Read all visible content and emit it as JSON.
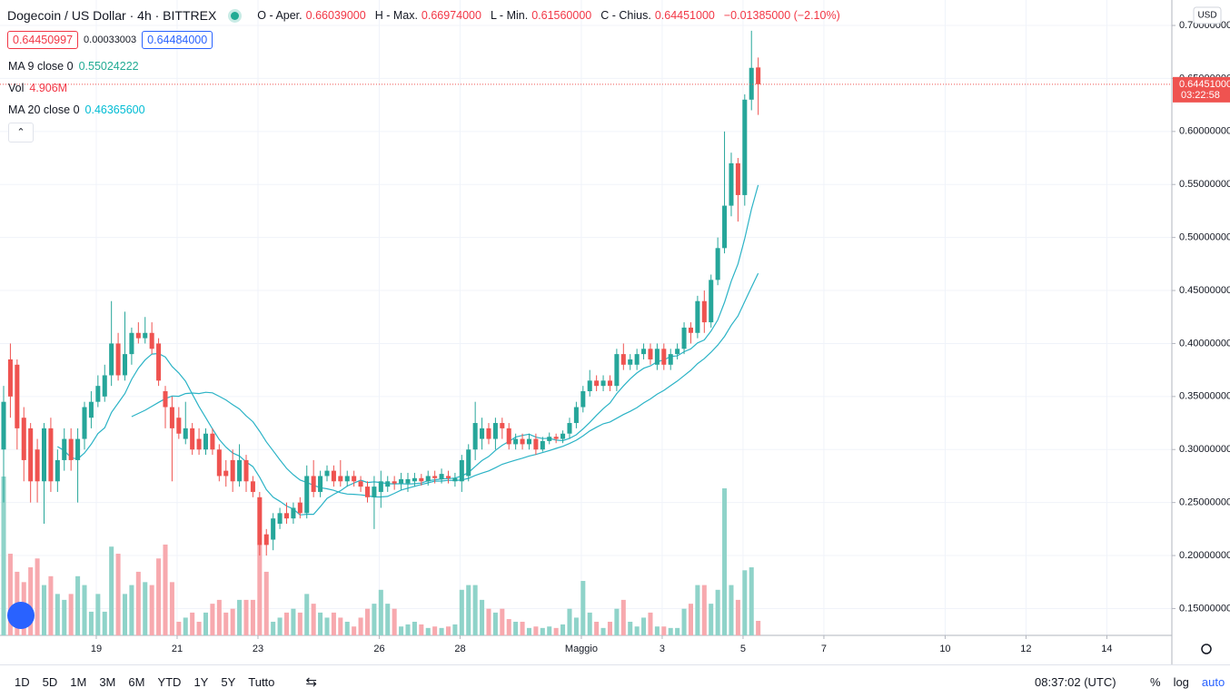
{
  "header": {
    "title": "Dogecoin / US Dollar · 4h · BITTREX",
    "ohlc": [
      {
        "label": "O - Aper.",
        "value": "0.66039000"
      },
      {
        "label": "H - Max.",
        "value": "0.66974000"
      },
      {
        "label": "L - Min.",
        "value": "0.61560000"
      },
      {
        "label": "C - Chius.",
        "value": "0.64451000"
      }
    ],
    "change": "−0.01385000 (−2.10%)",
    "bid": "0.64450997",
    "spread": "0.00033003",
    "ask": "0.64484000"
  },
  "indicators": [
    {
      "name": "MA 9 close 0",
      "value": "0.55024222",
      "color": "#22ab94"
    },
    {
      "name": "Vol",
      "value": "4.906M",
      "color": "#f23645"
    },
    {
      "name": "MA 20 close 0",
      "value": "0.46365600",
      "color": "#00bcd4"
    }
  ],
  "price_axis": {
    "currency": "USD",
    "last_price": "0.64451000",
    "countdown": "03:22:58"
  },
  "toolbar": {
    "ranges": [
      "1D",
      "5D",
      "1M",
      "3M",
      "6M",
      "YTD",
      "1Y",
      "5Y",
      "Tutto"
    ],
    "clock": "08:37:02 (UTC)",
    "scale_options": [
      "%",
      "log",
      "auto"
    ]
  },
  "chart_data": {
    "type": "candlestick",
    "up_color": "#26a69a",
    "down_color": "#ef5350",
    "up_volume_color": "#8fd3c9",
    "down_volume_color": "#f7a9ae",
    "grid": true,
    "ma": [
      {
        "period": 9,
        "color": "#2bb3c6"
      },
      {
        "period": 20,
        "color": "#2bb3c6"
      }
    ],
    "open": [
      0.3,
      0.385,
      0.38,
      0.33,
      0.32,
      0.3,
      0.27,
      0.32,
      0.27,
      0.29,
      0.31,
      0.29,
      0.31,
      0.33,
      0.345,
      0.35,
      0.37,
      0.4,
      0.37,
      0.39,
      0.41,
      0.405,
      0.41,
      0.4,
      0.355,
      0.34,
      0.33,
      0.31,
      0.32,
      0.31,
      0.3,
      0.315,
      0.3,
      0.28,
      0.29,
      0.27,
      0.29,
      0.27,
      0.255,
      0.22,
      0.215,
      0.23,
      0.24,
      0.235,
      0.25,
      0.24,
      0.275,
      0.26,
      0.275,
      0.28,
      0.275,
      0.27,
      0.275,
      0.27,
      0.265,
      0.255,
      0.26,
      0.265,
      0.27,
      0.268,
      0.268,
      0.27,
      0.273,
      0.27,
      0.275,
      0.272,
      0.275,
      0.27,
      0.27,
      0.275,
      0.3,
      0.31,
      0.32,
      0.31,
      0.325,
      0.32,
      0.305,
      0.31,
      0.305,
      0.31,
      0.3,
      0.308,
      0.312,
      0.31,
      0.315,
      0.325,
      0.34,
      0.355,
      0.365,
      0.36,
      0.365,
      0.36,
      0.39,
      0.38,
      0.38,
      0.39,
      0.395,
      0.38,
      0.395,
      0.38,
      0.39,
      0.395,
      0.415,
      0.41,
      0.44,
      0.42,
      0.46,
      0.49,
      0.53,
      0.57,
      0.54,
      0.63,
      0.66039
    ],
    "high": [
      0.36,
      0.4,
      0.385,
      0.34,
      0.325,
      0.31,
      0.325,
      0.33,
      0.3,
      0.32,
      0.32,
      0.32,
      0.345,
      0.355,
      0.37,
      0.38,
      0.44,
      0.41,
      0.43,
      0.415,
      0.42,
      0.425,
      0.42,
      0.405,
      0.36,
      0.35,
      0.34,
      0.345,
      0.325,
      0.32,
      0.32,
      0.32,
      0.305,
      0.29,
      0.3,
      0.305,
      0.295,
      0.275,
      0.26,
      0.225,
      0.24,
      0.245,
      0.25,
      0.25,
      0.255,
      0.285,
      0.29,
      0.28,
      0.285,
      0.285,
      0.29,
      0.28,
      0.28,
      0.275,
      0.27,
      0.275,
      0.28,
      0.275,
      0.275,
      0.278,
      0.278,
      0.278,
      0.277,
      0.28,
      0.28,
      0.282,
      0.28,
      0.278,
      0.295,
      0.305,
      0.345,
      0.33,
      0.325,
      0.33,
      0.33,
      0.325,
      0.315,
      0.315,
      0.315,
      0.315,
      0.312,
      0.316,
      0.315,
      0.318,
      0.33,
      0.345,
      0.36,
      0.375,
      0.37,
      0.37,
      0.37,
      0.395,
      0.4,
      0.39,
      0.395,
      0.4,
      0.4,
      0.4,
      0.4,
      0.395,
      0.4,
      0.42,
      0.42,
      0.445,
      0.45,
      0.465,
      0.5,
      0.6,
      0.58,
      0.575,
      0.635,
      0.695,
      0.66974
    ],
    "low": [
      0.25,
      0.33,
      0.3,
      0.27,
      0.25,
      0.25,
      0.23,
      0.26,
      0.26,
      0.28,
      0.28,
      0.25,
      0.3,
      0.32,
      0.34,
      0.345,
      0.36,
      0.365,
      0.365,
      0.38,
      0.4,
      0.4,
      0.39,
      0.36,
      0.32,
      0.27,
      0.31,
      0.305,
      0.295,
      0.295,
      0.295,
      0.295,
      0.27,
      0.265,
      0.26,
      0.265,
      0.26,
      0.255,
      0.2,
      0.2,
      0.205,
      0.225,
      0.23,
      0.23,
      0.235,
      0.235,
      0.255,
      0.255,
      0.27,
      0.265,
      0.265,
      0.265,
      0.265,
      0.26,
      0.25,
      0.225,
      0.245,
      0.26,
      0.262,
      0.262,
      0.26,
      0.265,
      0.266,
      0.266,
      0.268,
      0.268,
      0.268,
      0.265,
      0.26,
      0.27,
      0.29,
      0.3,
      0.305,
      0.3,
      0.31,
      0.3,
      0.3,
      0.3,
      0.3,
      0.295,
      0.298,
      0.305,
      0.306,
      0.306,
      0.31,
      0.32,
      0.335,
      0.35,
      0.355,
      0.355,
      0.355,
      0.355,
      0.375,
      0.375,
      0.375,
      0.385,
      0.38,
      0.375,
      0.375,
      0.375,
      0.385,
      0.39,
      0.4,
      0.405,
      0.41,
      0.415,
      0.455,
      0.485,
      0.52,
      0.515,
      0.53,
      0.62,
      0.6156
    ],
    "close": [
      0.345,
      0.35,
      0.32,
      0.29,
      0.27,
      0.27,
      0.32,
      0.27,
      0.29,
      0.31,
      0.29,
      0.31,
      0.34,
      0.345,
      0.36,
      0.37,
      0.4,
      0.37,
      0.39,
      0.41,
      0.405,
      0.41,
      0.395,
      0.365,
      0.34,
      0.32,
      0.315,
      0.32,
      0.3,
      0.3,
      0.315,
      0.3,
      0.275,
      0.275,
      0.27,
      0.29,
      0.27,
      0.26,
      0.21,
      0.21,
      0.235,
      0.24,
      0.235,
      0.245,
      0.24,
      0.275,
      0.26,
      0.275,
      0.28,
      0.27,
      0.27,
      0.275,
      0.27,
      0.265,
      0.255,
      0.265,
      0.27,
      0.27,
      0.268,
      0.272,
      0.272,
      0.273,
      0.27,
      0.275,
      0.273,
      0.277,
      0.273,
      0.273,
      0.29,
      0.3,
      0.325,
      0.32,
      0.31,
      0.325,
      0.32,
      0.305,
      0.31,
      0.305,
      0.31,
      0.3,
      0.308,
      0.312,
      0.31,
      0.315,
      0.325,
      0.34,
      0.355,
      0.365,
      0.36,
      0.365,
      0.36,
      0.39,
      0.38,
      0.385,
      0.39,
      0.395,
      0.385,
      0.395,
      0.38,
      0.39,
      0.395,
      0.415,
      0.41,
      0.44,
      0.42,
      0.46,
      0.49,
      0.53,
      0.57,
      0.54,
      0.63,
      0.66,
      0.64451
    ],
    "volume": [
      53.7,
      27.6,
      21.5,
      18,
      23,
      26,
      17,
      20,
      14,
      12,
      14,
      20,
      17,
      8,
      14,
      8,
      30,
      27.6,
      14,
      17,
      21.5,
      18,
      17,
      26,
      30.7,
      18,
      4.6,
      6,
      7.7,
      4.6,
      7.7,
      10.7,
      12,
      7.7,
      9,
      12,
      12,
      12,
      30.7,
      21.5,
      4.6,
      6,
      7.7,
      9,
      7.7,
      14,
      10.7,
      7.7,
      6,
      7.7,
      6,
      4.6,
      3,
      6,
      9,
      10.7,
      15.4,
      10.7,
      9,
      3,
      3.7,
      4.6,
      3.7,
      2.5,
      3,
      2.5,
      3,
      3.7,
      15.4,
      17,
      17,
      12,
      9,
      7.7,
      9,
      5.5,
      4.6,
      4.6,
      2.5,
      3,
      2.5,
      3,
      2.5,
      3.7,
      9,
      6,
      18.4,
      7.7,
      4.6,
      2.5,
      4.6,
      9,
      12,
      4.6,
      3,
      6,
      7.7,
      3,
      3,
      2.5,
      2.5,
      9,
      10.7,
      17,
      17,
      10.7,
      15.4,
      49.7,
      17,
      12,
      22,
      23,
      4.906
    ],
    "volume_lim": [
      0,
      54
    ],
    "ylim": [
      0.1247,
      0.724
    ],
    "yticks": [
      {
        "value": 0.15,
        "label": "0.15000000"
      },
      {
        "value": 0.2,
        "label": "0.20000000"
      },
      {
        "value": 0.25,
        "label": "0.25000000"
      },
      {
        "value": 0.3,
        "label": "0.30000000"
      },
      {
        "value": 0.35,
        "label": "0.35000000"
      },
      {
        "value": 0.4,
        "label": "0.40000000"
      },
      {
        "value": 0.45,
        "label": "0.45000000"
      },
      {
        "value": 0.5,
        "label": "0.50000000"
      },
      {
        "value": 0.55,
        "label": "0.55000000"
      },
      {
        "value": 0.6,
        "label": "0.60000000"
      },
      {
        "value": 0.65,
        "label": "0.65000000"
      },
      {
        "value": 0.7,
        "label": "0.70000000"
      }
    ],
    "xlim": [
      -0.54,
      173.4
    ],
    "xticks": [
      {
        "value": 13.75,
        "label": "19"
      },
      {
        "value": 25.75,
        "label": "21"
      },
      {
        "value": 37.75,
        "label": "23"
      },
      {
        "value": 55.75,
        "label": "26"
      },
      {
        "value": 67.75,
        "label": "28"
      },
      {
        "value": 85.75,
        "label": "Maggio"
      },
      {
        "value": 97.75,
        "label": "3"
      },
      {
        "value": 109.75,
        "label": "5"
      },
      {
        "value": 121.75,
        "label": "7"
      },
      {
        "value": 139.75,
        "label": "10"
      },
      {
        "value": 151.75,
        "label": "12"
      },
      {
        "value": 163.75,
        "label": "14"
      }
    ]
  }
}
